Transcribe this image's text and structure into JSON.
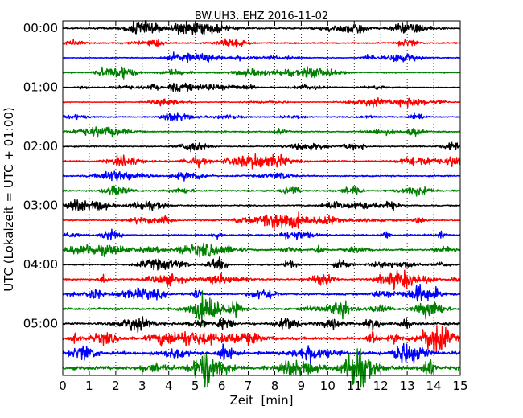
{
  "chart_data": {
    "type": "line",
    "title": "BW.UH3..EHZ 2016-11-02",
    "xlabel": "Zeit  [min]",
    "ylabel": "UTC (Lokalzeit = UTC + 01:00)",
    "xlim": [
      0,
      15
    ],
    "x_ticks": [
      "0",
      "1",
      "2",
      "3",
      "4",
      "5",
      "6",
      "7",
      "8",
      "9",
      "10",
      "11",
      "12",
      "13",
      "14",
      "15"
    ],
    "y_ticks": [
      "00:00",
      "01:00",
      "02:00",
      "03:00",
      "04:00",
      "05:00"
    ],
    "row_interval_min": 15,
    "grid": "vertical dotted",
    "trace_colors": [
      "#000000",
      "#ff0000",
      "#0000ff",
      "#008000"
    ],
    "rows": [
      {
        "start": "00:00",
        "color": "#000000",
        "amplitude": 0.4
      },
      {
        "start": "00:15",
        "color": "#ff0000",
        "amplitude": 0.3
      },
      {
        "start": "00:30",
        "color": "#0000ff",
        "amplitude": 0.26
      },
      {
        "start": "00:45",
        "color": "#008000",
        "amplitude": 0.28
      },
      {
        "start": "01:00",
        "color": "#000000",
        "amplitude": 0.24
      },
      {
        "start": "01:15",
        "color": "#ff0000",
        "amplitude": 0.22
      },
      {
        "start": "01:30",
        "color": "#0000ff",
        "amplitude": 0.26
      },
      {
        "start": "01:45",
        "color": "#008000",
        "amplitude": 0.3
      },
      {
        "start": "02:00",
        "color": "#000000",
        "amplitude": 0.32
      },
      {
        "start": "02:15",
        "color": "#ff0000",
        "amplitude": 0.4
      },
      {
        "start": "02:30",
        "color": "#0000ff",
        "amplitude": 0.34
      },
      {
        "start": "02:45",
        "color": "#008000",
        "amplitude": 0.36
      },
      {
        "start": "03:00",
        "color": "#000000",
        "amplitude": 0.3
      },
      {
        "start": "03:15",
        "color": "#ff0000",
        "amplitude": 0.34
      },
      {
        "start": "03:30",
        "color": "#0000ff",
        "amplitude": 0.36
      },
      {
        "start": "03:45",
        "color": "#008000",
        "amplitude": 0.4
      },
      {
        "start": "04:00",
        "color": "#000000",
        "amplitude": 0.38
      },
      {
        "start": "04:15",
        "color": "#ff0000",
        "amplitude": 0.4
      },
      {
        "start": "04:30",
        "color": "#0000ff",
        "amplitude": 0.46
      },
      {
        "start": "04:45",
        "color": "#008000",
        "amplitude": 0.5
      },
      {
        "start": "05:00",
        "color": "#000000",
        "amplitude": 0.56
      },
      {
        "start": "05:15",
        "color": "#ff0000",
        "amplitude": 0.7
      },
      {
        "start": "05:30",
        "color": "#0000ff",
        "amplitude": 0.8
      },
      {
        "start": "05:45",
        "color": "#008000",
        "amplitude": 0.9
      }
    ]
  }
}
